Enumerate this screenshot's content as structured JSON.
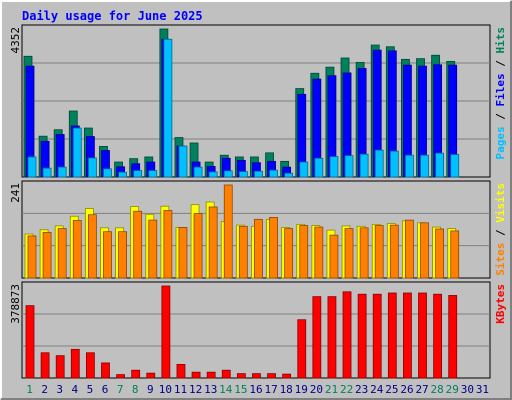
{
  "chart_data": [
    {
      "type": "bar",
      "title": "Daily usage for June 2025",
      "panel": "hits-files-pages",
      "max_label": "4352",
      "side_label": [
        "Pages",
        "Files",
        "Hits"
      ],
      "days": [
        1,
        2,
        3,
        4,
        5,
        6,
        7,
        8,
        9,
        10,
        11,
        12,
        13,
        14,
        15,
        16,
        17,
        18,
        19,
        20,
        21,
        22,
        23,
        24,
        25,
        26,
        27,
        28,
        29,
        30,
        31
      ],
      "weekend_days": [
        1,
        7,
        8,
        14,
        15,
        21,
        22,
        28,
        29
      ],
      "series": [
        {
          "name": "Hits",
          "values": [
            3550,
            1200,
            1390,
            1940,
            1440,
            900,
            440,
            540,
            590,
            4352,
            1160,
            1000,
            440,
            640,
            590,
            590,
            710,
            460,
            2600,
            3050,
            3230,
            3500,
            3370,
            3880,
            3830,
            3460,
            3480,
            3580,
            3400,
            0,
            0
          ]
        },
        {
          "name": "Files",
          "values": [
            3260,
            1050,
            1250,
            1500,
            1190,
            780,
            300,
            390,
            440,
            4050,
            910,
            440,
            310,
            550,
            490,
            420,
            460,
            290,
            2430,
            2880,
            2980,
            3060,
            3190,
            3730,
            3710,
            3290,
            3260,
            3300,
            3290,
            0,
            0
          ]
        },
        {
          "name": "Pages",
          "values": [
            590,
            260,
            290,
            1440,
            560,
            240,
            140,
            190,
            190,
            4050,
            910,
            290,
            150,
            180,
            160,
            170,
            200,
            110,
            440,
            550,
            600,
            630,
            670,
            790,
            760,
            640,
            640,
            700,
            660,
            0,
            0
          ]
        }
      ]
    },
    {
      "type": "bar",
      "panel": "sites-visits",
      "max_label": "241",
      "side_label": [
        "Sites",
        "Visits"
      ],
      "series": [
        {
          "name": "Visits",
          "values": [
            114,
            125,
            135,
            160,
            180,
            130,
            130,
            185,
            165,
            186,
            131,
            190,
            197,
            146,
            137,
            134,
            152,
            131,
            139,
            136,
            124,
            135,
            134,
            139,
            141,
            148,
            143,
            132,
            128,
            0,
            0
          ]
        },
        {
          "name": "Sites",
          "values": [
            109,
            118,
            128,
            149,
            164,
            120,
            120,
            173,
            150,
            175,
            131,
            167,
            184,
            241,
            134,
            152,
            157,
            128,
            136,
            132,
            111,
            128,
            130,
            136,
            137,
            150,
            143,
            127,
            122,
            0,
            0
          ]
        }
      ]
    },
    {
      "type": "bar",
      "panel": "kbytes",
      "max_label": "378873",
      "side_label": [
        "KBytes"
      ],
      "series": [
        {
          "name": "KBytes",
          "values": [
            298000,
            104000,
            92000,
            118000,
            104000,
            62000,
            14000,
            32000,
            20000,
            378873,
            56000,
            24000,
            24000,
            32000,
            18000,
            18000,
            18000,
            16000,
            240000,
            335000,
            335000,
            355000,
            345000,
            345000,
            350000,
            350000,
            350000,
            345000,
            340000,
            0,
            0
          ]
        }
      ]
    }
  ],
  "colors": {
    "hits": "#00805C",
    "files": "#0000FF",
    "pages": "#00C0FF",
    "visits": "#FFFF00",
    "sites": "#FF8000",
    "kbytes": "#FF0000",
    "day_weekday": "#00008B",
    "day_weekend": "#00805C",
    "title": "#0000FF",
    "panel_bg": "#C0C0C0"
  }
}
